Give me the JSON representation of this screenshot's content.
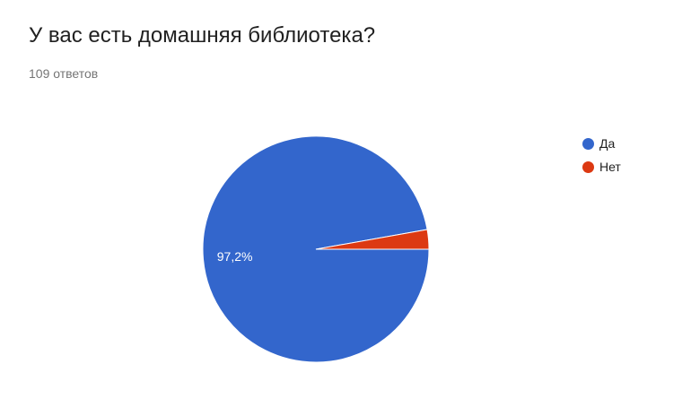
{
  "title": "У вас есть домашняя библиотека?",
  "subtitle": "109 ответов",
  "chart_data": {
    "type": "pie",
    "categories": [
      "Да",
      "Нет"
    ],
    "values": [
      97.2,
      2.8
    ],
    "colors": [
      "#3366cc",
      "#dc3912"
    ],
    "data_labels": [
      "97,2%",
      ""
    ],
    "legend_position": "right"
  }
}
